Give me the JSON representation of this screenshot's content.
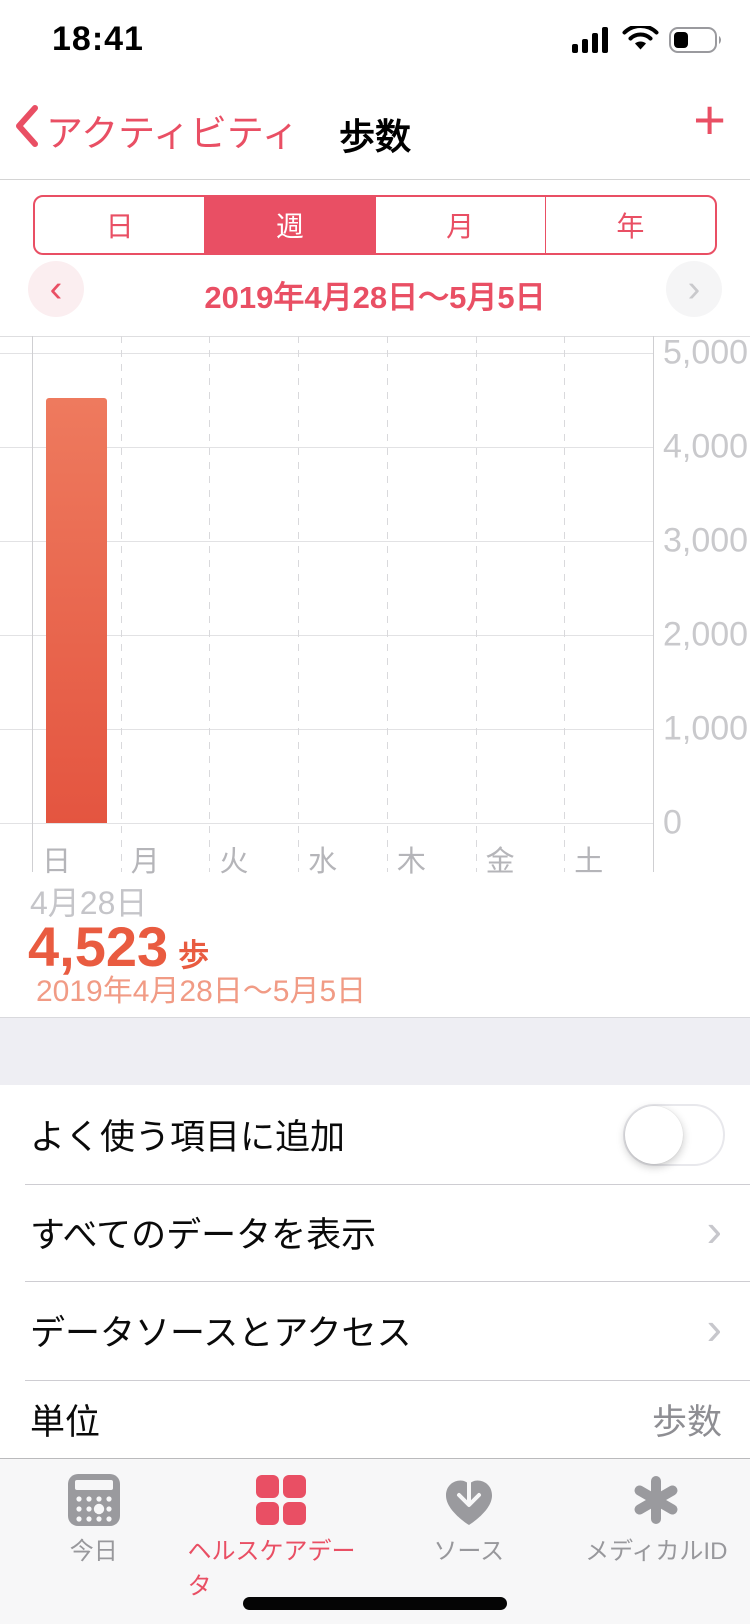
{
  "status_bar": {
    "time": "18:41",
    "battery_percent": 35
  },
  "nav": {
    "back_label": "アクティビティ",
    "title": "歩数",
    "add_label": "+"
  },
  "segments": {
    "options": [
      "日",
      "週",
      "月",
      "年"
    ],
    "selected_index": 1
  },
  "period_nav": {
    "label": "2019年4月28日〜5月5日",
    "prev_glyph": "‹",
    "next_glyph": "›"
  },
  "chart_data": {
    "type": "bar",
    "categories": [
      "日",
      "月",
      "火",
      "水",
      "木",
      "金",
      "土"
    ],
    "values": [
      4523,
      0,
      0,
      0,
      0,
      0,
      0
    ],
    "title": "歩数",
    "xlabel": "",
    "ylabel": "歩",
    "ylim": [
      0,
      5000
    ],
    "ytick_interval": 1000,
    "ytick_labels": [
      "0",
      "1,000",
      "2,000",
      "3,000",
      "4,000",
      "5,000"
    ],
    "grid": true,
    "legend_position": "none",
    "bar_color": "#e6634a",
    "highlight": {
      "category": "日",
      "date_label": "4月28日",
      "value": 4523,
      "value_label": "4,523",
      "unit": "歩",
      "period": "2019年4月28日〜5月5日"
    }
  },
  "summary": {
    "day_label": "4月28日",
    "value": "4,523",
    "unit": "歩",
    "range": "2019年4月28日〜5月5日"
  },
  "settings": {
    "rows": [
      {
        "label": "よく使う項目に追加",
        "type": "toggle",
        "value": false
      },
      {
        "label": "すべてのデータを表示",
        "type": "link"
      },
      {
        "label": "データソースとアクセス",
        "type": "link"
      },
      {
        "label": "単位",
        "type": "value",
        "value": "歩数"
      }
    ],
    "chevron_glyph": "›"
  },
  "tab_bar": {
    "items": [
      {
        "label": "今日",
        "icon": "today-icon",
        "active": false
      },
      {
        "label": "ヘルスケアデータ",
        "icon": "health-data-icon",
        "active": true
      },
      {
        "label": "ソース",
        "icon": "sources-icon",
        "active": false
      },
      {
        "label": "メディカルID",
        "icon": "medical-id-icon",
        "active": false
      }
    ]
  },
  "colors": {
    "accent": "#e94f64",
    "bar_top": "#ee7a5e",
    "bar_bottom": "#e45540",
    "value_text": "#e95b40",
    "range_text": "#f19b85",
    "inactive_gray": "#98989c"
  }
}
